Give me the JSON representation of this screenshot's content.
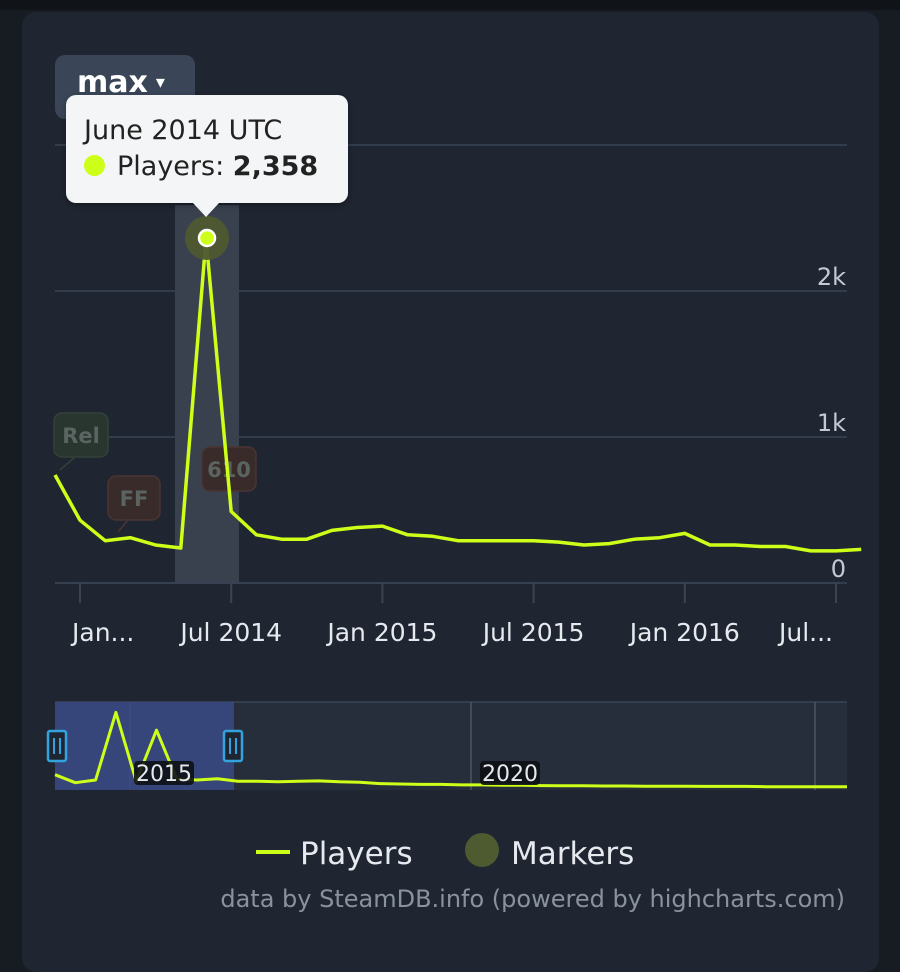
{
  "range_selector": {
    "label": "max",
    "caret": "▾"
  },
  "tooltip": {
    "date": "June 2014 UTC",
    "series_label": "Players:",
    "value": "2,358"
  },
  "colors": {
    "line": "#cdff18",
    "marker": "#4e5a30",
    "grid": "#3a4455",
    "axis_text": "#e6e9ee",
    "tick_text": "#c4cad3",
    "navigator_bg": "#262e3b",
    "navigator_selection": "#3a4a86",
    "handle": "#33a3e0"
  },
  "chart_data": {
    "type": "line",
    "title": "",
    "xlabel": "",
    "ylabel": "",
    "x_range": [
      "2013-12",
      "2016-10"
    ],
    "ylim": [
      0,
      3000
    ],
    "y_ticks": [
      0,
      1000,
      2000
    ],
    "y_tick_labels": [
      "0",
      "1k",
      "2k"
    ],
    "x_ticks": [
      "2014-01",
      "2014-07",
      "2015-01",
      "2015-07",
      "2016-01",
      "2016-07"
    ],
    "x_tick_labels": [
      "Jan...",
      "Jul 2014",
      "Jan 2015",
      "Jul 2015",
      "Jan 2016",
      "Jul..."
    ],
    "series": [
      {
        "name": "Players",
        "x": [
          "2013-12",
          "2014-01",
          "2014-02",
          "2014-03",
          "2014-04",
          "2014-05",
          "2014-06",
          "2014-07",
          "2014-08",
          "2014-09",
          "2014-10",
          "2014-11",
          "2014-12",
          "2015-01",
          "2015-02",
          "2015-03",
          "2015-04",
          "2015-05",
          "2015-06",
          "2015-07",
          "2015-08",
          "2015-09",
          "2015-10",
          "2015-11",
          "2015-12",
          "2016-01",
          "2016-02",
          "2016-03",
          "2016-04",
          "2016-05",
          "2016-06",
          "2016-07",
          "2016-08"
        ],
        "values": [
          740,
          430,
          290,
          310,
          260,
          240,
          2358,
          490,
          330,
          300,
          300,
          360,
          380,
          390,
          330,
          320,
          290,
          290,
          290,
          290,
          280,
          260,
          270,
          300,
          310,
          340,
          260,
          260,
          250,
          250,
          220,
          220,
          230
        ]
      }
    ],
    "markers": [
      {
        "label": "Rel",
        "x": "2013-12",
        "y": 1000
      },
      {
        "label": "FF",
        "x": "2014-03",
        "y": 600
      },
      {
        "label": "610",
        "x": "2014-07",
        "y": 780
      }
    ],
    "highlight": {
      "x": "2014-06",
      "value": 2358
    },
    "legend": {
      "entries": [
        "Players",
        "Markers"
      ],
      "position": "bottom"
    },
    "grid": true,
    "navigator": {
      "labels": [
        "2015",
        "2020"
      ],
      "values": [
        300,
        120,
        180,
        1700,
        150,
        1300,
        200,
        180,
        210,
        150,
        150,
        140,
        150,
        160,
        140,
        130,
        100,
        90,
        80,
        80,
        70,
        70,
        60,
        60,
        55,
        50,
        50,
        45,
        45,
        40,
        40,
        40,
        35,
        35,
        35,
        30,
        30,
        30,
        30,
        30
      ]
    }
  },
  "credit": "data by SteamDB.info (powered by highcharts.com)"
}
